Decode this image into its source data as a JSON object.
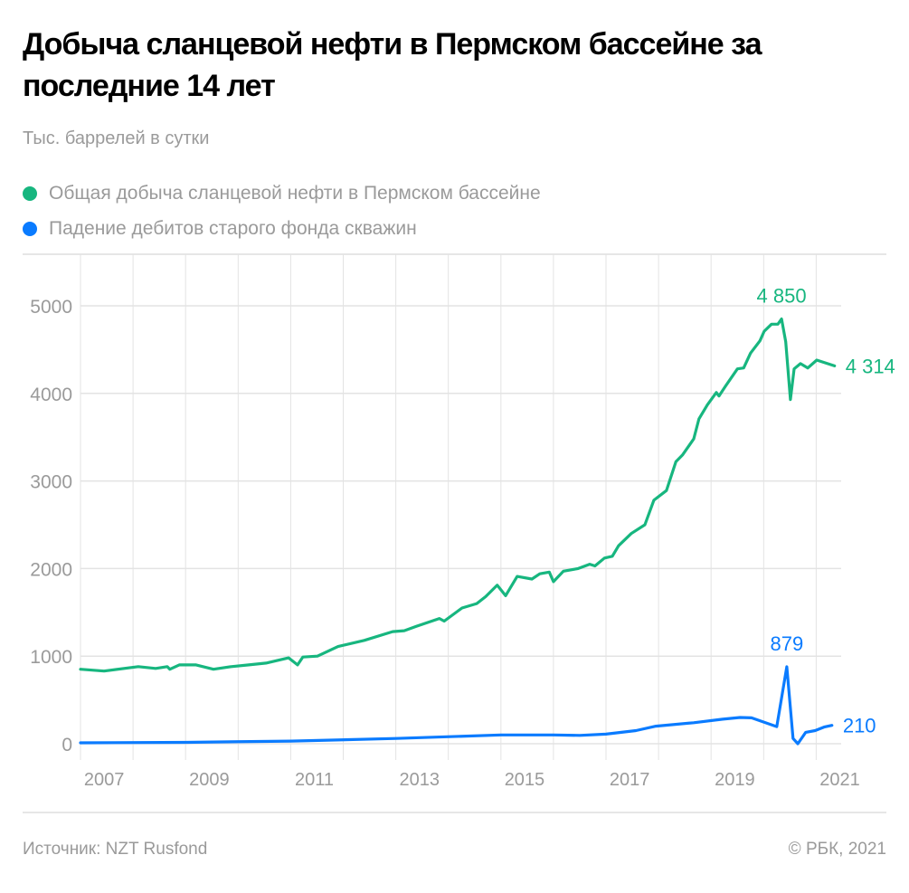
{
  "title": "Добыча сланцевой нефти в Пермском бассейне за последние 14 лет",
  "unit_label": "Тыс. баррелей в сутки",
  "legend": [
    {
      "label": "Общая добыча сланцевой нефти в Пермском бассейне",
      "color": "#17b67f"
    },
    {
      "label": "Падение дебитов старого фонда скважин",
      "color": "#0a7bff"
    }
  ],
  "footer": {
    "source": "Источник:  NZT Rusfond",
    "copyright": "©  РБК, 2021"
  },
  "chart_data": {
    "type": "line",
    "title": "Добыча сланцевой нефти в Пермском бассейне за последние 14 лет",
    "ylabel": "Тыс. баррелей в сутки",
    "xlim": [
      2007,
      2021.5
    ],
    "ylim": [
      0,
      5000
    ],
    "yticks": [
      "0",
      "1000",
      "2000",
      "3000",
      "4000",
      "5000"
    ],
    "xticks": [
      "2007",
      "2009",
      "2011",
      "2013",
      "2015",
      "2017",
      "2019",
      "2021"
    ],
    "grid": true,
    "legend_position": "top-left",
    "series": [
      {
        "name": "Общая добыча сланцевой нефти в Пермском бассейне",
        "color": "#17b67f",
        "x": [
          2007.0,
          2007.45,
          2008.1,
          2008.43,
          2008.65,
          2008.7,
          2008.88,
          2009.2,
          2009.53,
          2009.87,
          2010.2,
          2010.53,
          2010.96,
          2011.13,
          2011.23,
          2011.51,
          2011.9,
          2012.4,
          2012.94,
          2013.16,
          2013.39,
          2013.83,
          2013.92,
          2014.26,
          2014.54,
          2014.71,
          2014.93,
          2015.09,
          2015.31,
          2015.59,
          2015.74,
          2015.92,
          2016.0,
          2016.19,
          2016.47,
          2016.69,
          2016.79,
          2016.97,
          2017.12,
          2017.24,
          2017.48,
          2017.74,
          2017.91,
          2018.15,
          2018.33,
          2018.46,
          2018.67,
          2018.77,
          2018.93,
          2019.1,
          2019.15,
          2019.27,
          2019.5,
          2019.62,
          2019.75,
          2019.93,
          2020.01,
          2020.15,
          2020.27,
          2020.34,
          2020.42,
          2020.51,
          2020.58,
          2020.7,
          2020.84,
          2021.01,
          2021.35
        ],
        "y": [
          850,
          830,
          880,
          860,
          880,
          850,
          900,
          900,
          850,
          880,
          900,
          920,
          980,
          900,
          990,
          1000,
          1110,
          1180,
          1280,
          1290,
          1340,
          1430,
          1400,
          1550,
          1600,
          1680,
          1810,
          1690,
          1910,
          1880,
          1940,
          1960,
          1850,
          1970,
          2000,
          2050,
          2030,
          2120,
          2140,
          2260,
          2400,
          2500,
          2780,
          2890,
          3220,
          3300,
          3480,
          3710,
          3870,
          4010,
          3970,
          4080,
          4280,
          4290,
          4460,
          4600,
          4710,
          4790,
          4790,
          4850,
          4590,
          3930,
          4280,
          4340,
          4290,
          4380,
          4314
        ],
        "annotations": [
          {
            "x": 2020.34,
            "y": 4850,
            "label": "4 850"
          },
          {
            "x": 2021.35,
            "y": 4314,
            "label": "4 314"
          }
        ]
      },
      {
        "name": "Падение дебитов старого фонда скважин",
        "color": "#0a7bff",
        "x": [
          2007.0,
          2009.0,
          2011.0,
          2013.0,
          2015.0,
          2016.0,
          2016.5,
          2017.0,
          2017.57,
          2017.95,
          2018.67,
          2019.22,
          2019.55,
          2019.77,
          2020.25,
          2020.44,
          2020.56,
          2020.65,
          2020.8,
          2020.98,
          2021.15,
          2021.3
        ],
        "y": [
          10,
          15,
          30,
          60,
          100,
          100,
          95,
          110,
          150,
          200,
          240,
          280,
          300,
          295,
          195,
          879,
          60,
          0,
          130,
          150,
          190,
          210
        ],
        "annotations": [
          {
            "x": 2020.44,
            "y": 879,
            "label": "879"
          },
          {
            "x": 2021.3,
            "y": 210,
            "label": "210"
          }
        ]
      }
    ]
  }
}
